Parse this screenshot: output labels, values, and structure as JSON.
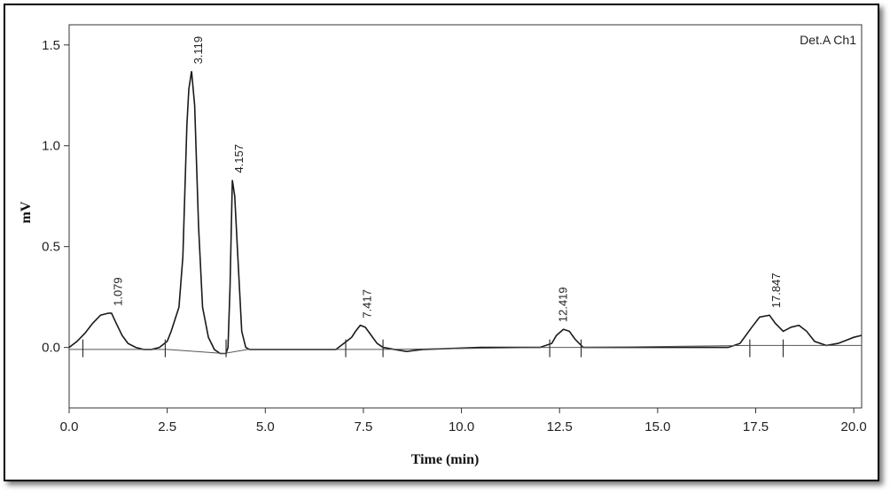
{
  "chart_data": {
    "type": "line",
    "title": "",
    "xlabel": "Time (min)",
    "ylabel": "mV",
    "xlim": [
      0,
      20.2
    ],
    "ylim": [
      -0.3,
      1.6
    ],
    "xticks": [
      0.0,
      2.5,
      5.0,
      7.5,
      10.0,
      12.5,
      15.0,
      17.5,
      20.0
    ],
    "xtick_labels": [
      "0.0",
      "2.5",
      "5.0",
      "7.5",
      "10.0",
      "12.5",
      "15.0",
      "17.5",
      "20.0"
    ],
    "yticks": [
      0.0,
      0.5,
      1.0,
      1.5
    ],
    "ytick_labels": [
      "0.0",
      "0.5",
      "1.0",
      "1.5"
    ],
    "legend": "Det.A Ch1",
    "legend_position": "top-right",
    "grid": false,
    "series": [
      {
        "x": [
          0.0,
          0.2,
          0.4,
          0.6,
          0.8,
          1.0,
          1.08,
          1.2,
          1.35,
          1.5,
          1.7,
          1.9,
          2.1,
          2.3,
          2.5,
          2.6,
          2.7,
          2.8,
          2.9,
          3.0,
          3.05,
          3.12,
          3.2,
          3.3,
          3.4,
          3.55,
          3.7,
          3.85,
          4.0,
          4.05,
          4.1,
          4.16,
          4.22,
          4.3,
          4.4,
          4.5,
          4.6,
          4.8,
          5.2,
          6.0,
          6.8,
          7.0,
          7.2,
          7.3,
          7.42,
          7.55,
          7.7,
          7.85,
          8.0,
          8.3,
          8.6,
          9.0,
          10.5,
          12.0,
          12.3,
          12.42,
          12.6,
          12.75,
          12.9,
          13.1,
          14.5,
          16.8,
          17.1,
          17.4,
          17.6,
          17.85,
          18.0,
          18.2,
          18.4,
          18.6,
          18.8,
          19.0,
          19.3,
          19.6,
          20.0,
          20.2
        ],
        "y": [
          0.0,
          0.03,
          0.07,
          0.12,
          0.16,
          0.17,
          0.17,
          0.12,
          0.06,
          0.02,
          0.0,
          -0.01,
          -0.01,
          0.0,
          0.03,
          0.08,
          0.14,
          0.2,
          0.45,
          1.1,
          1.28,
          1.37,
          1.2,
          0.6,
          0.2,
          0.05,
          -0.01,
          -0.03,
          -0.03,
          0.0,
          0.3,
          0.83,
          0.75,
          0.45,
          0.08,
          0.0,
          -0.01,
          -0.01,
          -0.01,
          -0.01,
          -0.01,
          0.02,
          0.05,
          0.08,
          0.11,
          0.1,
          0.06,
          0.02,
          0.0,
          -0.01,
          -0.02,
          -0.01,
          0.0,
          0.0,
          0.02,
          0.06,
          0.09,
          0.08,
          0.04,
          0.0,
          0.0,
          0.0,
          0.02,
          0.1,
          0.15,
          0.16,
          0.12,
          0.08,
          0.1,
          0.11,
          0.08,
          0.03,
          0.01,
          0.02,
          0.05,
          0.06
        ]
      },
      {
        "x": [
          0.0,
          2.5,
          3.95,
          4.55,
          7.0,
          8.0,
          12.2,
          13.05,
          17.3,
          20.2
        ],
        "y": [
          -0.01,
          -0.01,
          -0.03,
          -0.01,
          -0.01,
          -0.01,
          0.0,
          0.0,
          0.01,
          0.01
        ]
      }
    ],
    "annotations": [
      {
        "text": "1.079",
        "x": 1.079,
        "y": 0.17
      },
      {
        "text": "3.119",
        "x": 3.119,
        "y": 1.37
      },
      {
        "text": "4.157",
        "x": 4.157,
        "y": 0.83
      },
      {
        "text": "7.417",
        "x": 7.417,
        "y": 0.11
      },
      {
        "text": "12.419",
        "x": 12.419,
        "y": 0.09
      },
      {
        "text": "17.847",
        "x": 17.847,
        "y": 0.16
      }
    ],
    "markers": [
      0.35,
      2.45,
      4.0,
      7.05,
      8.0,
      12.25,
      13.05,
      17.35,
      18.2
    ]
  }
}
